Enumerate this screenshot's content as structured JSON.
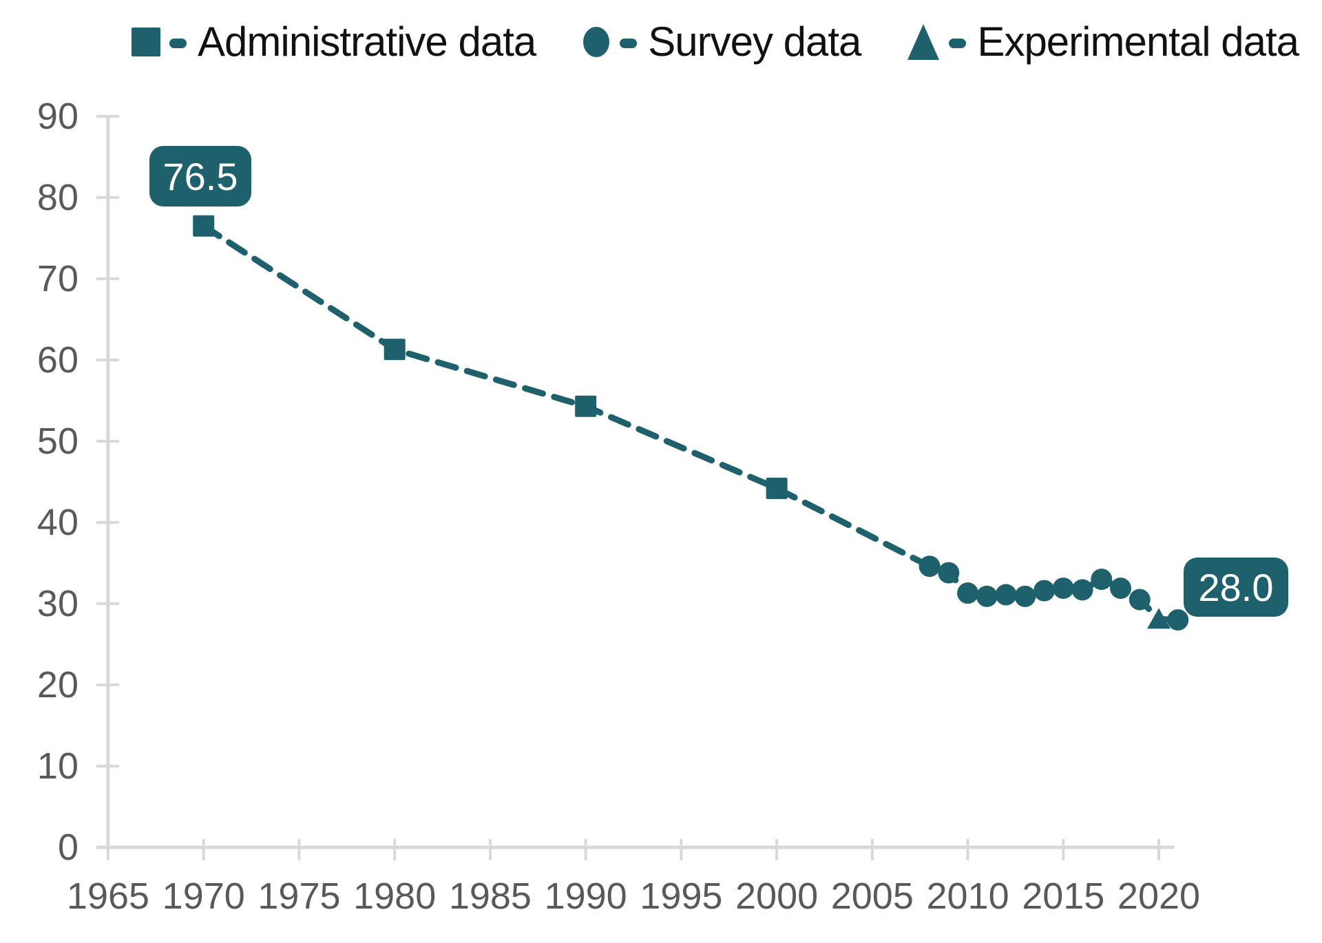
{
  "chart_data": {
    "type": "line",
    "title": "",
    "xlabel": "",
    "ylabel": "",
    "line_style": "dashed",
    "grid": false,
    "legend_position": "top",
    "x_axis": {
      "ticks": [
        1965,
        1970,
        1975,
        1980,
        1985,
        1990,
        1995,
        2000,
        2005,
        2010,
        2015,
        2020
      ],
      "range": [
        1965,
        2022
      ]
    },
    "y_axis": {
      "ticks": [
        0,
        10,
        20,
        30,
        40,
        50,
        60,
        70,
        80,
        90
      ],
      "range": [
        0,
        90
      ]
    },
    "series": [
      {
        "name": "Administrative data",
        "marker": "square",
        "points": [
          [
            1970,
            76.5
          ],
          [
            1980,
            61.3
          ],
          [
            1990,
            54.3
          ],
          [
            2000,
            44.2
          ]
        ]
      },
      {
        "name": "Survey data",
        "marker": "circle",
        "points": [
          [
            2008,
            34.6
          ],
          [
            2009,
            33.8
          ],
          [
            2010,
            31.3
          ],
          [
            2011,
            30.9
          ],
          [
            2012,
            31.1
          ],
          [
            2013,
            30.9
          ],
          [
            2014,
            31.6
          ],
          [
            2015,
            31.9
          ],
          [
            2016,
            31.7
          ],
          [
            2017,
            33.0
          ],
          [
            2018,
            31.9
          ],
          [
            2019,
            30.5
          ],
          [
            2021,
            28.0
          ]
        ]
      },
      {
        "name": "Experimental data",
        "marker": "triangle",
        "points": [
          [
            2020,
            28.1
          ]
        ]
      }
    ],
    "annotations": [
      {
        "label": "76.5",
        "year": 1970,
        "value": 76.5,
        "position": "above"
      },
      {
        "label": "28.0",
        "year": 2021,
        "value": 28.0,
        "position": "right"
      }
    ],
    "colors": {
      "series": "#1e616c",
      "axis_line": "#d9d9d9",
      "axis_label": "#595959",
      "legend_text": "#111111",
      "annotation_bg": "#1e616c",
      "annotation_text": "#ffffff"
    }
  }
}
